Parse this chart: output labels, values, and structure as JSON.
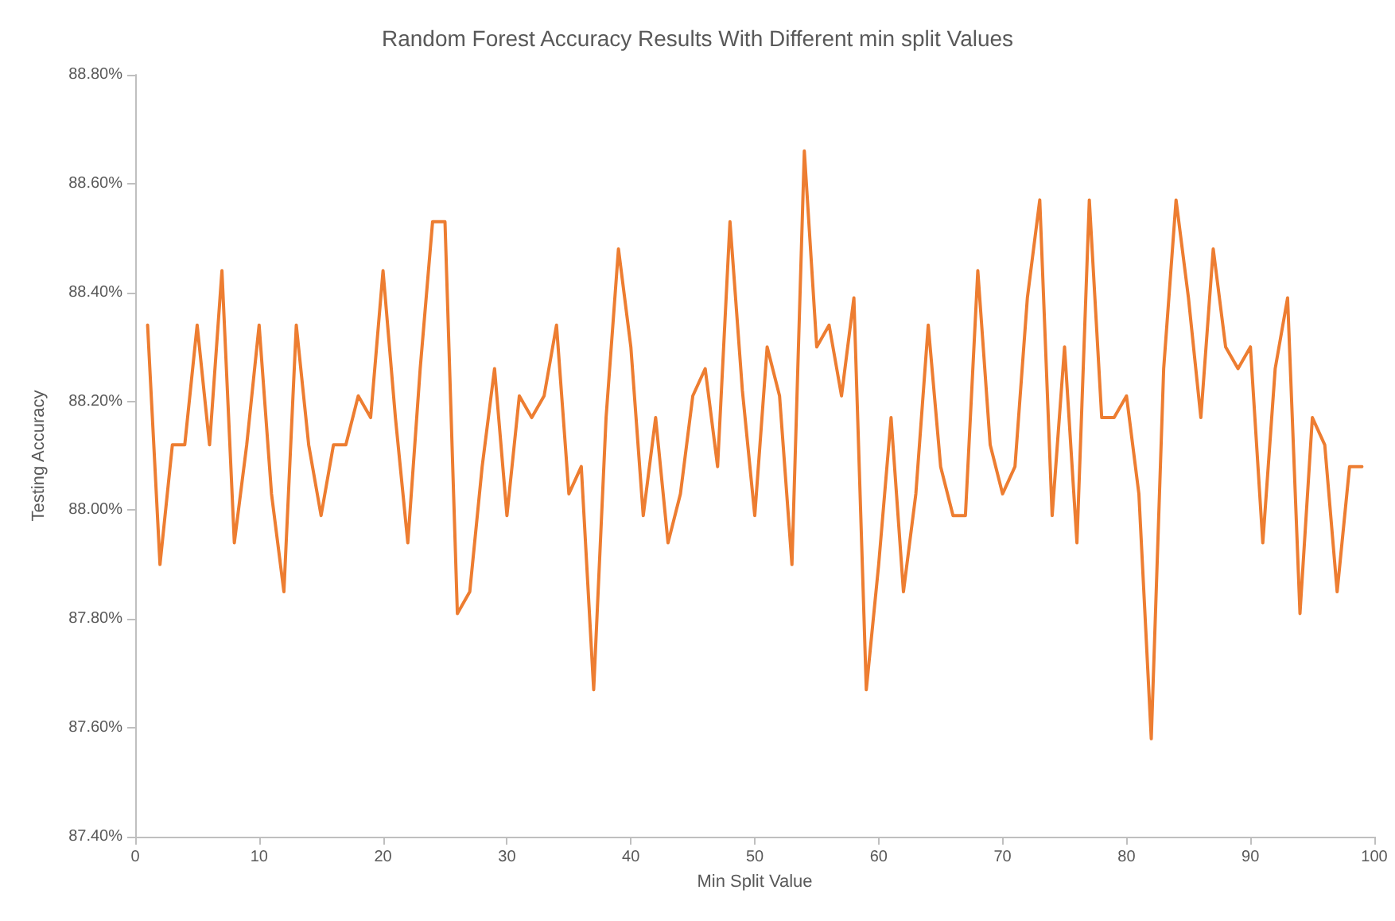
{
  "chart_data": {
    "type": "line",
    "title": "Random Forest Accuracy Results With Different min split Values",
    "xlabel": "Min Split Value",
    "ylabel": "Testing Accuracy",
    "x": [
      1,
      2,
      3,
      4,
      5,
      6,
      7,
      8,
      9,
      10,
      11,
      12,
      13,
      14,
      15,
      16,
      17,
      18,
      19,
      20,
      21,
      22,
      23,
      24,
      25,
      26,
      27,
      28,
      29,
      30,
      31,
      32,
      33,
      34,
      35,
      36,
      37,
      38,
      39,
      40,
      41,
      42,
      43,
      44,
      45,
      46,
      47,
      48,
      49,
      50,
      51,
      52,
      53,
      54,
      55,
      56,
      57,
      58,
      59,
      60,
      61,
      62,
      63,
      64,
      65,
      66,
      67,
      68,
      69,
      70,
      71,
      72,
      73,
      74,
      75,
      76,
      77,
      78,
      79,
      80,
      81,
      82,
      83,
      84,
      85,
      86,
      87,
      88,
      89,
      90,
      91,
      92,
      93,
      94,
      95,
      96,
      97,
      98,
      99
    ],
    "series": [
      {
        "color": "#ed7d31",
        "values": [
          88.34,
          87.9,
          88.12,
          88.12,
          88.34,
          88.12,
          88.44,
          87.94,
          88.12,
          88.34,
          88.03,
          87.85,
          88.34,
          88.12,
          87.99,
          88.12,
          88.12,
          88.21,
          88.17,
          88.44,
          88.17,
          87.94,
          88.26,
          88.53,
          88.53,
          87.81,
          87.85,
          88.08,
          88.26,
          87.99,
          88.21,
          88.17,
          88.21,
          88.34,
          88.03,
          88.08,
          87.67,
          88.17,
          88.48,
          88.3,
          87.99,
          88.17,
          87.94,
          88.03,
          88.21,
          88.26,
          88.08,
          88.53,
          88.22,
          87.99,
          88.3,
          88.21,
          87.9,
          88.66,
          88.3,
          88.34,
          88.21,
          88.39,
          87.67,
          87.9,
          88.17,
          87.85,
          88.03,
          88.34,
          88.08,
          87.99,
          87.99,
          88.44,
          88.12,
          88.03,
          88.08,
          88.39,
          88.57,
          87.99,
          88.3,
          87.94,
          88.57,
          88.17,
          88.17,
          88.21,
          88.03,
          87.58,
          88.26,
          88.57,
          88.39,
          88.17,
          88.48,
          88.3,
          88.26,
          88.3,
          87.94,
          88.26,
          88.39,
          87.81,
          88.17,
          88.12,
          87.85,
          88.08,
          88.08
        ]
      }
    ],
    "xlim": [
      0,
      100
    ],
    "xticks": [
      0,
      10,
      20,
      30,
      40,
      50,
      60,
      70,
      80,
      90,
      100
    ],
    "ylim": [
      87.4,
      88.8
    ],
    "yticks": [
      {
        "value": 87.4,
        "label": "87.40%"
      },
      {
        "value": 87.6,
        "label": "87.60%"
      },
      {
        "value": 87.8,
        "label": "87.80%"
      },
      {
        "value": 88.0,
        "label": "88.00%"
      },
      {
        "value": 88.2,
        "label": "88.20%"
      },
      {
        "value": 88.4,
        "label": "88.40%"
      },
      {
        "value": 88.6,
        "label": "88.60%"
      },
      {
        "value": 88.8,
        "label": "88.80%"
      }
    ],
    "grid": false,
    "marker": "none",
    "line_style": "solid"
  }
}
